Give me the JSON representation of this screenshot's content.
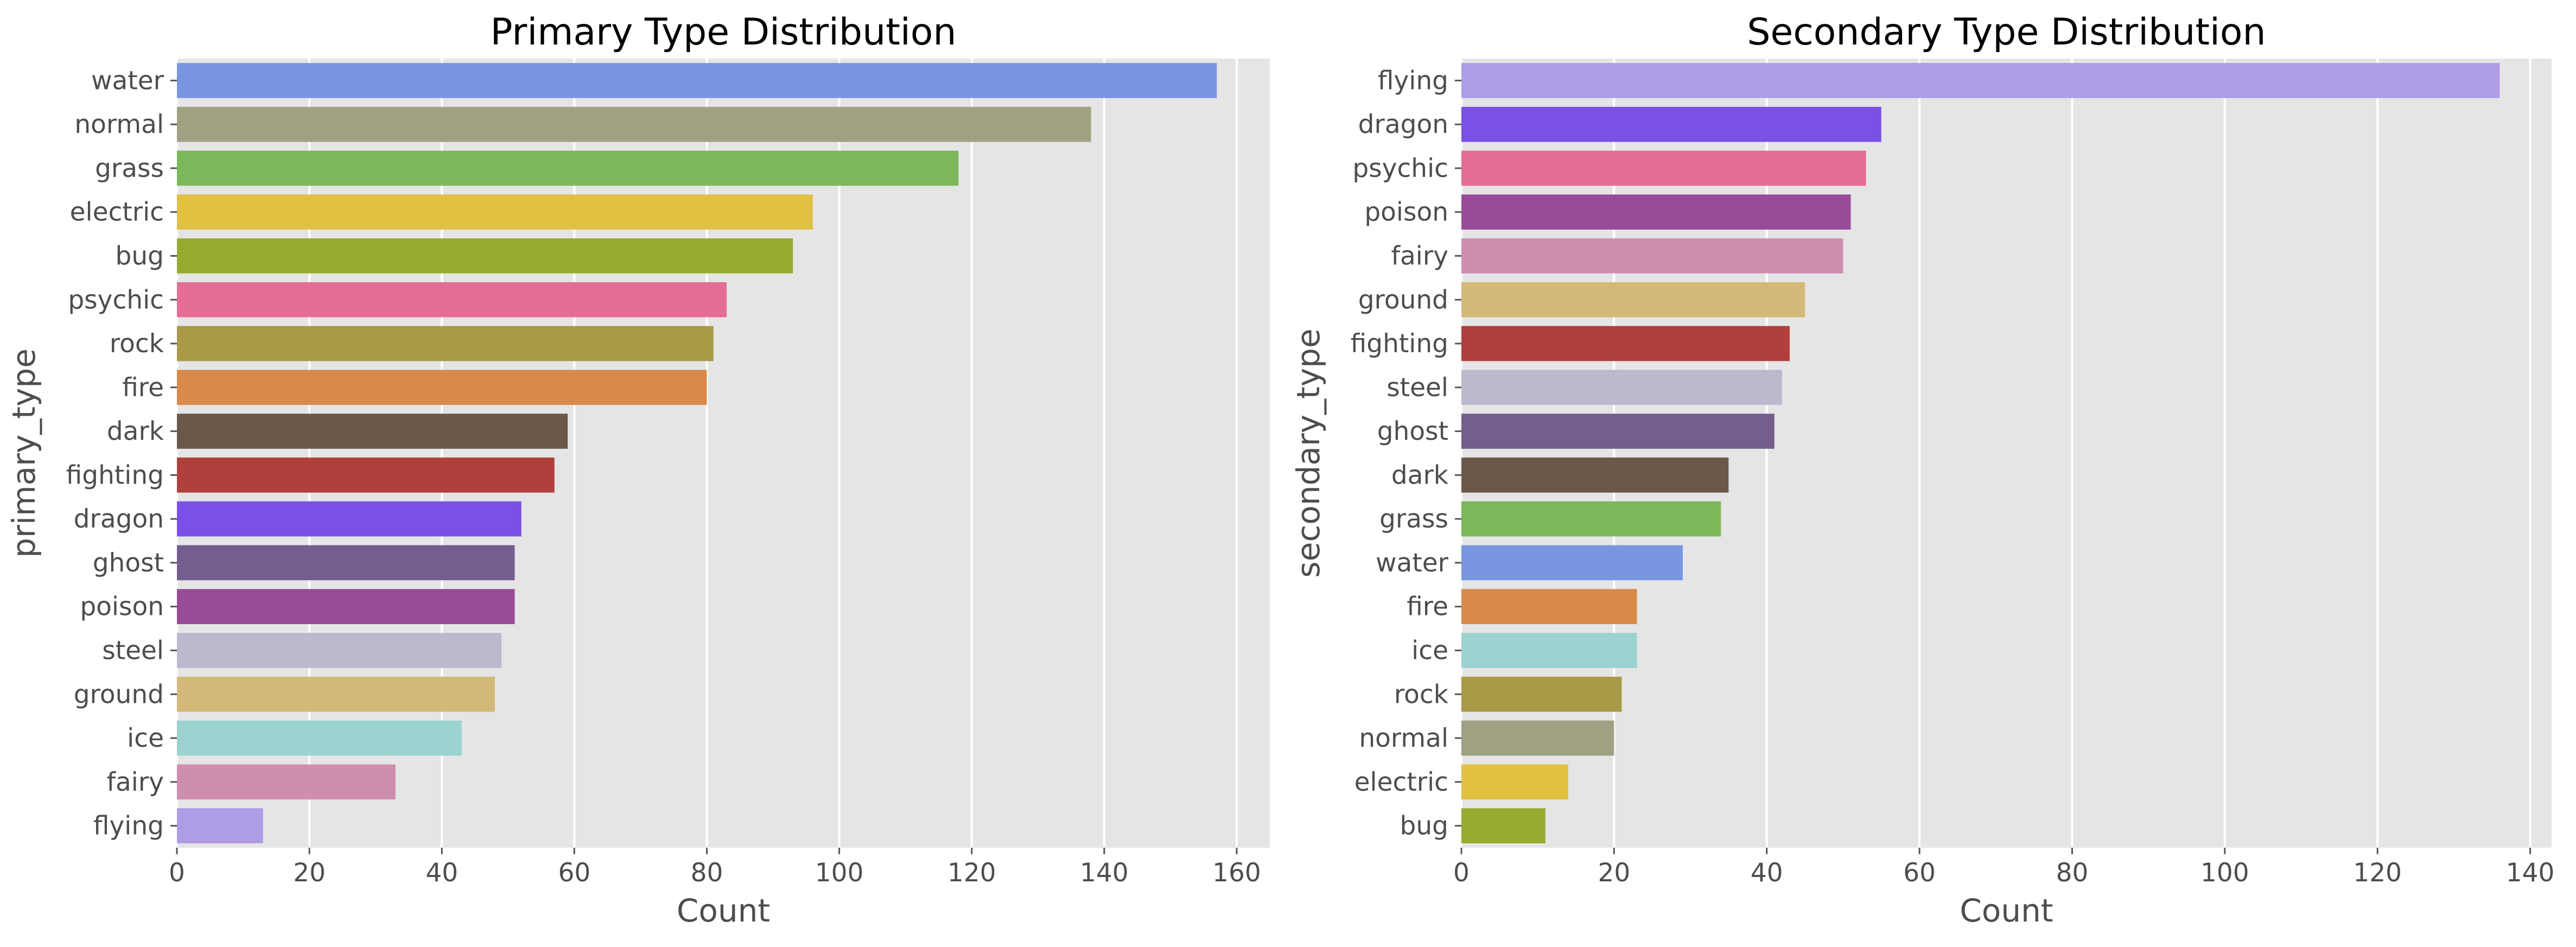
{
  "chart_data": [
    {
      "type": "bar",
      "orientation": "horizontal",
      "title": "Primary Type Distribution",
      "xlabel": "Count",
      "ylabel": "primary_type",
      "xlim": [
        0,
        165
      ],
      "xticks": [
        0,
        20,
        40,
        60,
        80,
        100,
        120,
        140,
        160
      ],
      "categories": [
        "water",
        "normal",
        "grass",
        "electric",
        "bug",
        "psychic",
        "rock",
        "fire",
        "dark",
        "fighting",
        "dragon",
        "ghost",
        "poison",
        "steel",
        "ground",
        "ice",
        "fairy",
        "flying"
      ],
      "values": [
        157,
        138,
        118,
        96,
        93,
        83,
        81,
        80,
        59,
        57,
        52,
        51,
        51,
        49,
        48,
        43,
        33,
        13
      ],
      "colors": [
        "#7896e2",
        "#a0a083",
        "#7cb85a",
        "#e1c042",
        "#98aa30",
        "#e66d93",
        "#a89a46",
        "#d98a4a",
        "#6b5849",
        "#b13f3b",
        "#7a50e6",
        "#735e8f",
        "#984b96",
        "#bbb9cd",
        "#d3b979",
        "#9bd3d0",
        "#d08eaf",
        "#ae9ce6"
      ],
      "grid": true
    },
    {
      "type": "bar",
      "orientation": "horizontal",
      "title": "Secondary Type Distribution",
      "xlabel": "Count",
      "ylabel": "secondary_type",
      "xlim": [
        0,
        142.8
      ],
      "xticks": [
        0,
        20,
        40,
        60,
        80,
        100,
        120,
        140
      ],
      "categories": [
        "flying",
        "dragon",
        "psychic",
        "poison",
        "fairy",
        "ground",
        "fighting",
        "steel",
        "ghost",
        "dark",
        "grass",
        "water",
        "fire",
        "ice",
        "rock",
        "normal",
        "electric",
        "bug"
      ],
      "values": [
        136,
        55,
        53,
        51,
        50,
        45,
        43,
        42,
        41,
        35,
        34,
        29,
        23,
        23,
        21,
        20,
        14,
        11
      ],
      "colors": [
        "#ae9ce6",
        "#7a50e6",
        "#e66d93",
        "#984b96",
        "#d08eaf",
        "#d3b979",
        "#b13f3b",
        "#bbb9cd",
        "#735e8f",
        "#6b5849",
        "#7cb85a",
        "#7896e2",
        "#d98a4a",
        "#9bd3d0",
        "#a89a46",
        "#a0a083",
        "#e1c042",
        "#98aa30"
      ],
      "grid": true
    }
  ]
}
